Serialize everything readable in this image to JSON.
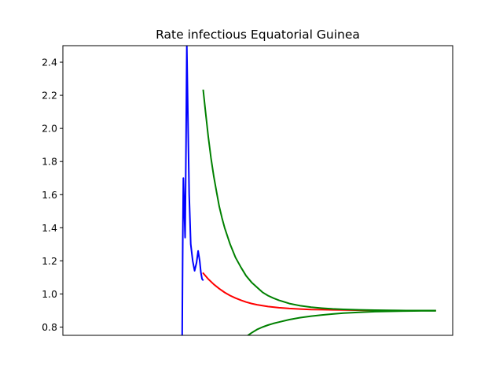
{
  "chart_data": {
    "type": "line",
    "title": "Rate infectious Equatorial Guinea",
    "xlabel": "",
    "ylabel": "",
    "x_ticks_shown": false,
    "xlim": [
      0,
      100
    ],
    "ylim": [
      0.75,
      2.5
    ],
    "yticks": [
      "0.8",
      "1.0",
      "1.2",
      "1.4",
      "1.6",
      "1.8",
      "2.0",
      "2.2",
      "2.4"
    ],
    "grid": false,
    "legend": "none",
    "series": [
      {
        "color": "#0000ff",
        "x": [
          30.6,
          30.75,
          30.9,
          31.1,
          31.35,
          31.6,
          31.8,
          32.05,
          32.4,
          32.8,
          33.3,
          33.8,
          34.3,
          34.7,
          35.1,
          35.4,
          35.7,
          35.9
        ],
        "y": [
          0.75,
          1.3,
          1.7,
          1.55,
          1.34,
          1.9,
          2.5,
          2.1,
          1.6,
          1.3,
          1.2,
          1.14,
          1.19,
          1.26,
          1.2,
          1.13,
          1.09,
          1.085
        ]
      },
      {
        "color": "#ff0000",
        "x": [
          36.0,
          37.3,
          38.7,
          40.1,
          41.5,
          42.9,
          44.3,
          45.7,
          47.0,
          48.4,
          49.8,
          52.6,
          55.4,
          58.1,
          60.9,
          63.7,
          66.5,
          69.2,
          72.0,
          75.0,
          78.0,
          82.0,
          86.0,
          90.0,
          94.0,
          95.5
        ],
        "y": [
          1.125,
          1.09,
          1.058,
          1.032,
          1.009,
          0.99,
          0.975,
          0.962,
          0.951,
          0.942,
          0.935,
          0.924,
          0.917,
          0.912,
          0.909,
          0.906,
          0.905,
          0.904,
          0.903,
          0.902,
          0.901,
          0.9,
          0.9,
          0.9,
          0.9,
          0.9
        ]
      },
      {
        "color": "#008000",
        "x": [
          36.0,
          36.6,
          37.3,
          38.0,
          38.7,
          39.4,
          40.1,
          40.8,
          41.5,
          42.9,
          44.3,
          45.7,
          47.0,
          48.4,
          49.8,
          51.2,
          52.6,
          54.0,
          55.4,
          58.1,
          60.9,
          63.7,
          66.5,
          69.2,
          72.0,
          76.0,
          80.0,
          84.0,
          88.0,
          92.0,
          95.5
        ],
        "y": [
          2.23,
          2.1,
          1.95,
          1.82,
          1.71,
          1.62,
          1.53,
          1.46,
          1.4,
          1.3,
          1.22,
          1.16,
          1.11,
          1.07,
          1.04,
          1.01,
          0.99,
          0.975,
          0.962,
          0.942,
          0.929,
          0.92,
          0.914,
          0.91,
          0.907,
          0.904,
          0.902,
          0.901,
          0.9,
          0.9,
          0.9
        ]
      },
      {
        "color": "#008000",
        "x": [
          47.5,
          48.4,
          49.8,
          51.2,
          52.6,
          54.0,
          55.4,
          58.1,
          60.9,
          63.7,
          66.5,
          69.2,
          72.0,
          76.0,
          80.0,
          84.0,
          88.0,
          92.0,
          95.5
        ],
        "y": [
          0.75,
          0.765,
          0.785,
          0.8,
          0.812,
          0.822,
          0.83,
          0.845,
          0.857,
          0.866,
          0.873,
          0.879,
          0.884,
          0.889,
          0.893,
          0.895,
          0.897,
          0.898,
          0.898
        ]
      }
    ]
  }
}
